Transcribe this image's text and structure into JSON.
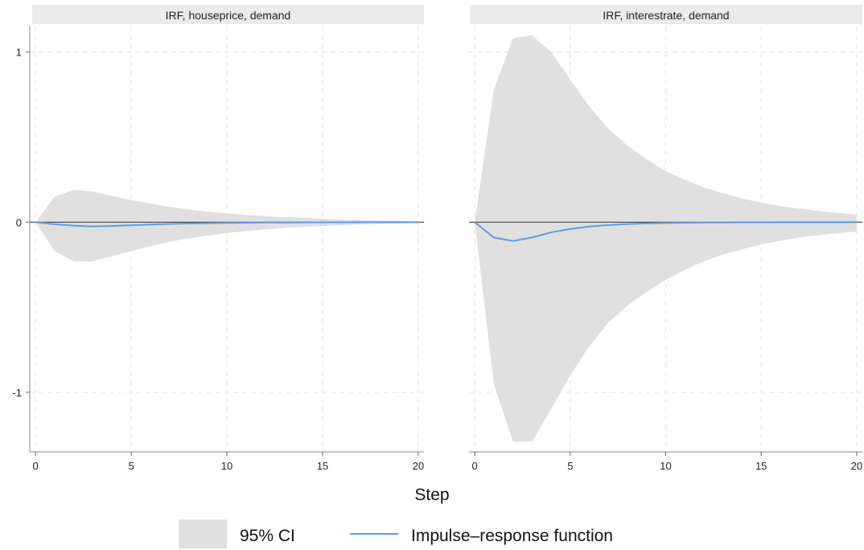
{
  "chart_data": {
    "type": "line",
    "xlabel": "Step",
    "ylim": [
      -1.35,
      1.15
    ],
    "xlim": [
      -0.3,
      20.3
    ],
    "x_ticks": [
      0,
      5,
      10,
      15,
      20
    ],
    "y_ticks": [
      1,
      0,
      -1
    ],
    "grid": true,
    "legend_position": "bottom",
    "legend": {
      "ci_label": "95% CI",
      "line_label": "Impulse–response function"
    },
    "colors": {
      "ci_fill": "#e0e0e0",
      "irf_line": "#5a9ee8",
      "strip": "#ebebeb",
      "grid": "#e4e4e4",
      "zero_line": "#555555"
    },
    "panels": [
      {
        "title": "IRF, houseprice, demand",
        "x": [
          0,
          1,
          2,
          3,
          4,
          5,
          6,
          7,
          8,
          9,
          10,
          11,
          12,
          13,
          14,
          15,
          16,
          17,
          18,
          19,
          20
        ],
        "irf": [
          0,
          -0.012,
          -0.02,
          -0.025,
          -0.022,
          -0.018,
          -0.014,
          -0.01,
          -0.008,
          -0.006,
          -0.004,
          -0.003,
          -0.002,
          -0.002,
          -0.001,
          -0.001,
          -0.001,
          0,
          0,
          0,
          0
        ],
        "upper": [
          0,
          0.15,
          0.19,
          0.18,
          0.155,
          0.13,
          0.11,
          0.09,
          0.075,
          0.062,
          0.052,
          0.043,
          0.036,
          0.03,
          0.025,
          0.02,
          0.016,
          0.013,
          0.01,
          0.008,
          0.006
        ],
        "lower": [
          0,
          -0.17,
          -0.23,
          -0.23,
          -0.2,
          -0.17,
          -0.14,
          -0.115,
          -0.095,
          -0.078,
          -0.064,
          -0.052,
          -0.042,
          -0.034,
          -0.027,
          -0.022,
          -0.017,
          -0.013,
          -0.01,
          -0.008,
          -0.006
        ]
      },
      {
        "title": "IRF, interestrate, demand",
        "x": [
          0,
          1,
          2,
          3,
          4,
          5,
          6,
          7,
          8,
          9,
          10,
          11,
          12,
          13,
          14,
          15,
          16,
          17,
          18,
          19,
          20
        ],
        "irf": [
          0,
          -0.09,
          -0.11,
          -0.09,
          -0.06,
          -0.04,
          -0.025,
          -0.017,
          -0.011,
          -0.007,
          -0.005,
          -0.003,
          -0.002,
          -0.002,
          -0.001,
          -0.001,
          0,
          0,
          0,
          0,
          0
        ],
        "upper": [
          0,
          0.78,
          1.08,
          1.1,
          1.0,
          0.84,
          0.68,
          0.55,
          0.45,
          0.37,
          0.3,
          0.25,
          0.205,
          0.17,
          0.14,
          0.115,
          0.095,
          0.08,
          0.066,
          0.055,
          0.045
        ],
        "lower": [
          0,
          -0.95,
          -1.29,
          -1.29,
          -1.1,
          -0.9,
          -0.73,
          -0.59,
          -0.49,
          -0.41,
          -0.34,
          -0.28,
          -0.23,
          -0.19,
          -0.16,
          -0.13,
          -0.11,
          -0.09,
          -0.075,
          -0.065,
          -0.055
        ]
      }
    ]
  }
}
